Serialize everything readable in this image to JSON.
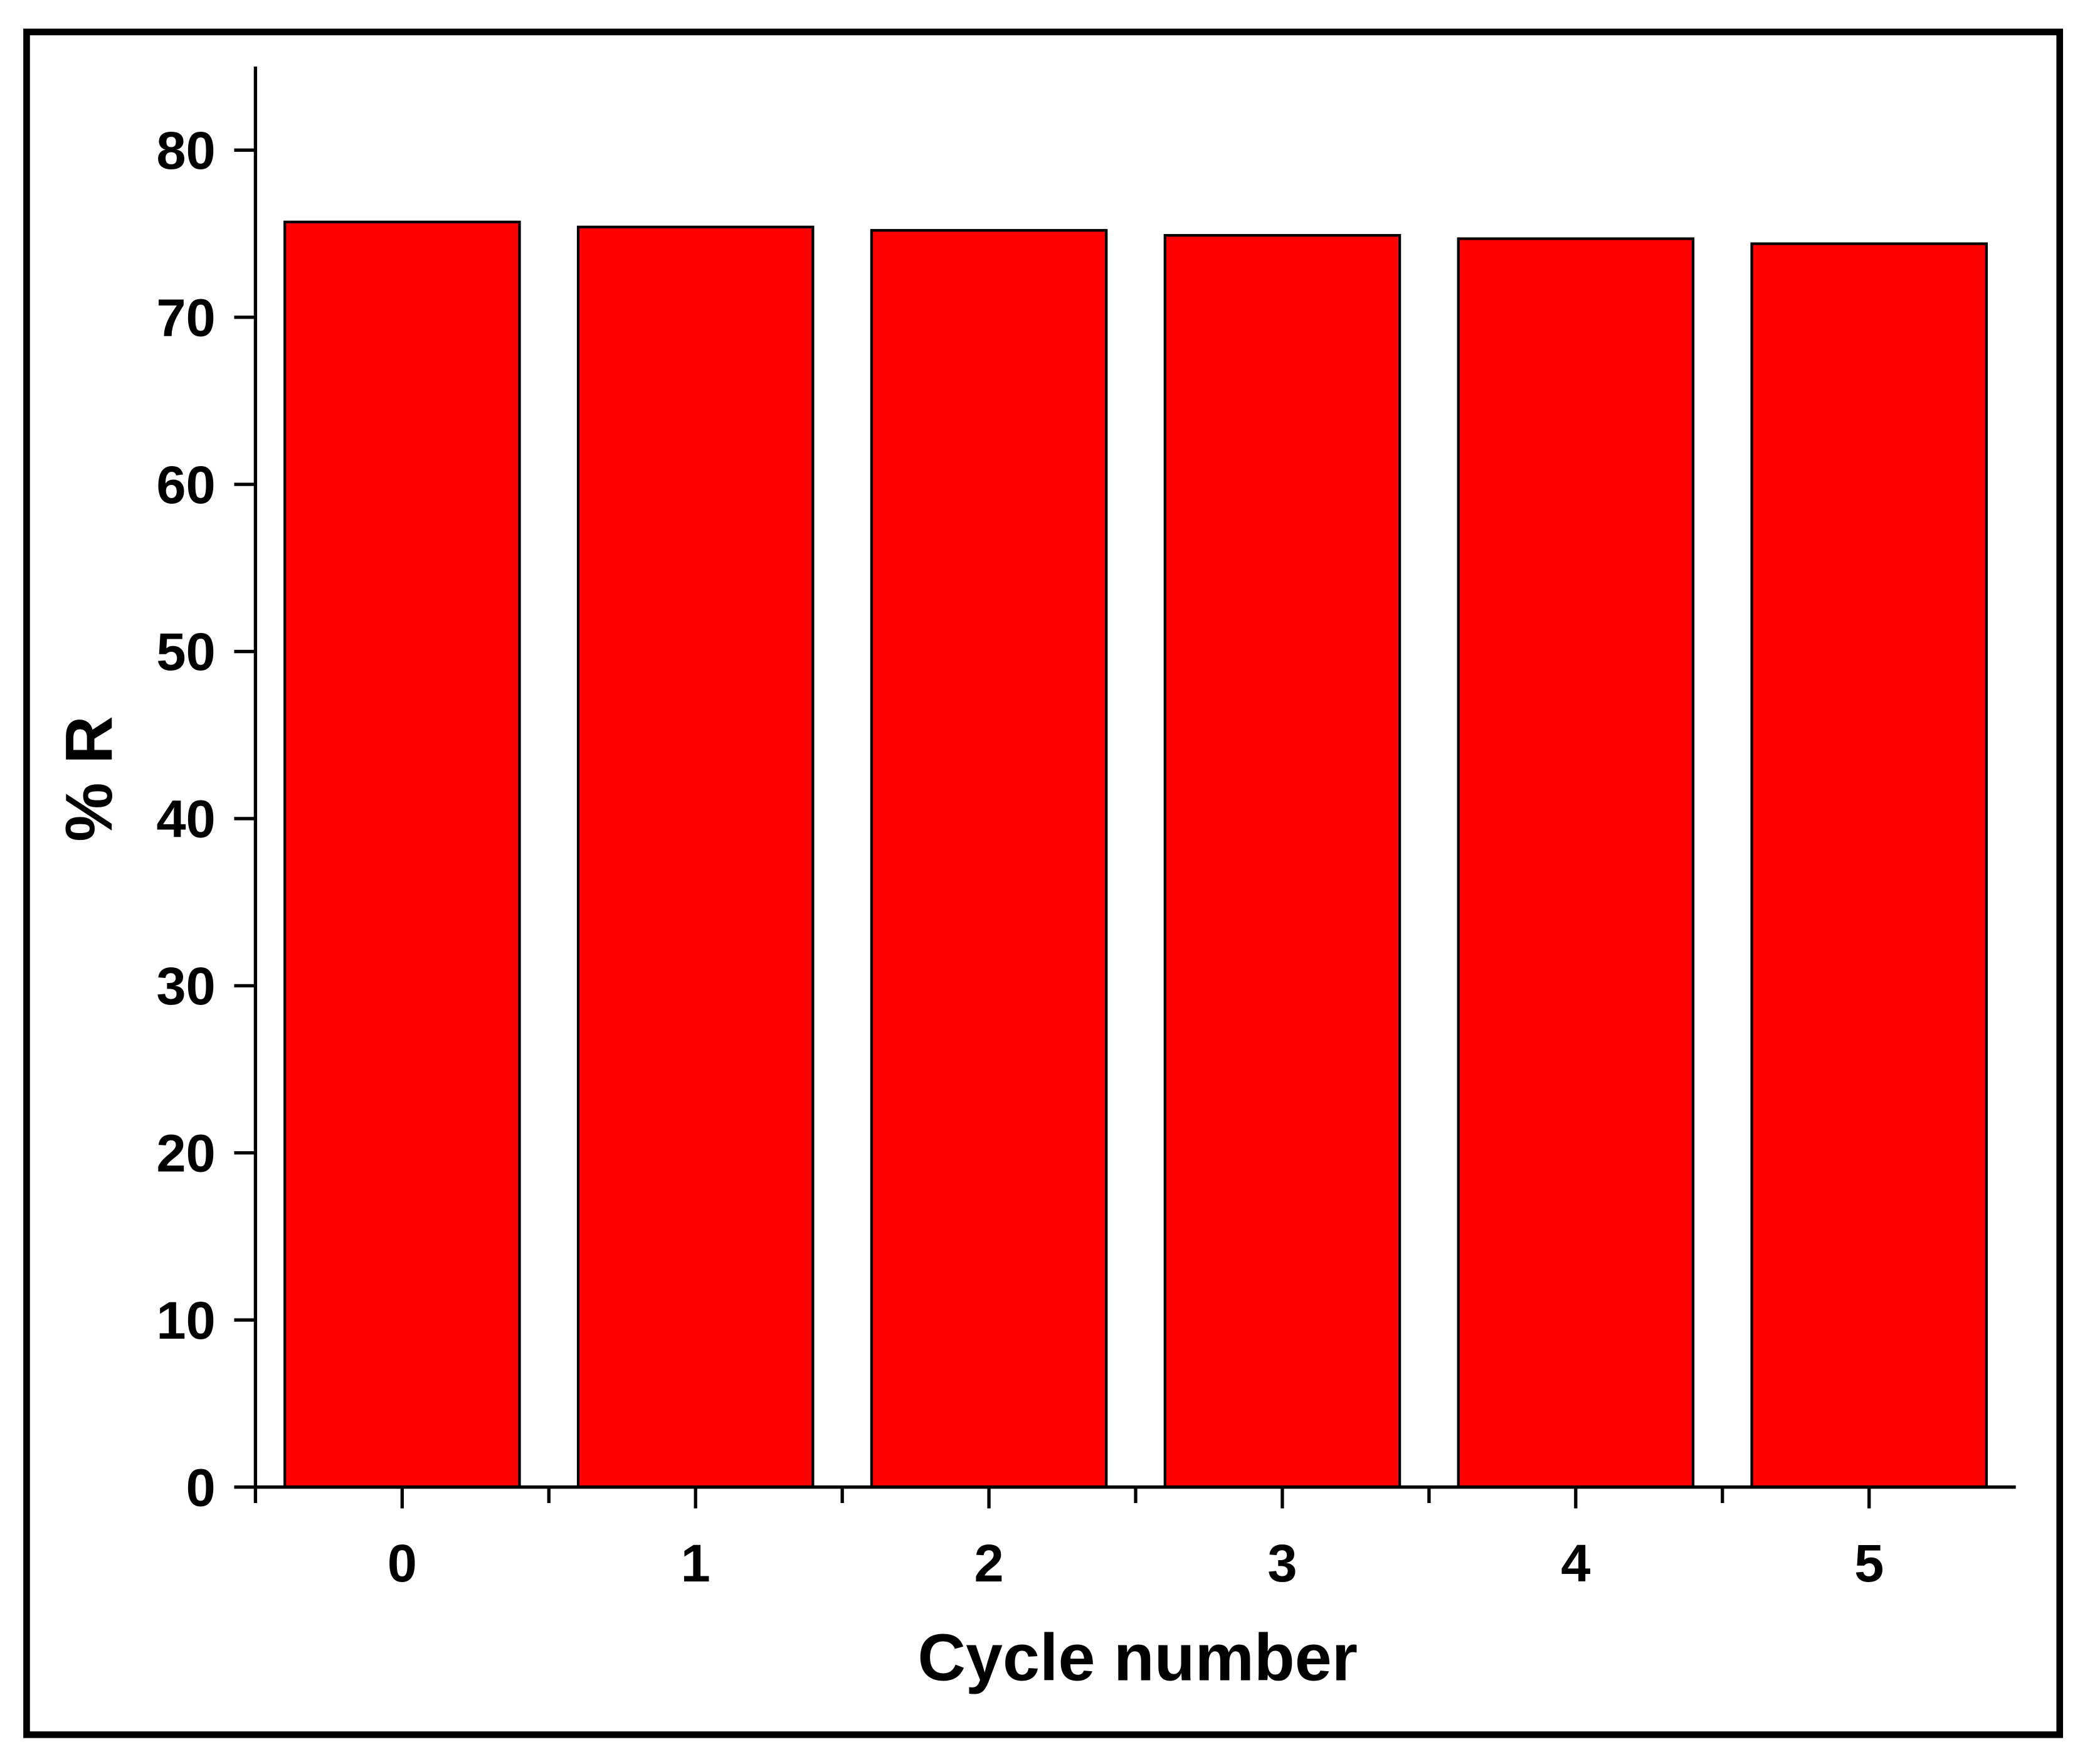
{
  "chart_data": {
    "type": "bar",
    "x_label": "Cycle number",
    "y_label": "% R",
    "categories": [
      "0",
      "1",
      "2",
      "3",
      "4",
      "5"
    ],
    "values": [
      75.7,
      75.4,
      75.2,
      74.9,
      74.7,
      74.4
    ],
    "color": "#ff0000",
    "ylim": [
      0,
      85
    ],
    "yticks": [
      0,
      10,
      20,
      30,
      40,
      50,
      60,
      70,
      80
    ],
    "grid": false
  }
}
